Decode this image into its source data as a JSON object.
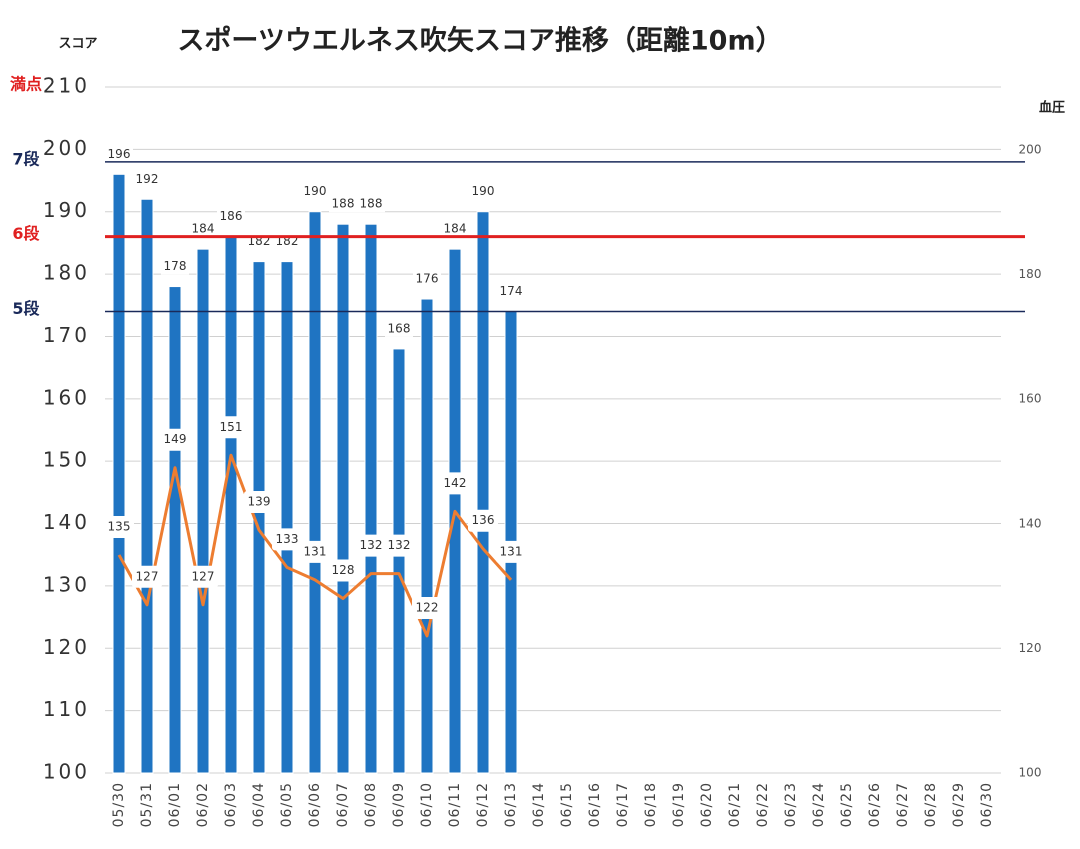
{
  "chart_data": {
    "type": "bar_line",
    "title": "スポーツウエルネス吹矢スコア推移（距離10m）",
    "y_label": "スコア",
    "y2_label": "血圧",
    "categories": [
      "05/30",
      "05/31",
      "06/01",
      "06/02",
      "06/03",
      "06/04",
      "06/05",
      "06/06",
      "06/07",
      "06/08",
      "06/09",
      "06/10",
      "06/11",
      "06/12",
      "06/13",
      "06/14",
      "06/15",
      "06/16",
      "06/17",
      "06/18",
      "06/19",
      "06/20",
      "06/21",
      "06/22",
      "06/23",
      "06/24",
      "06/25",
      "06/26",
      "06/27",
      "06/28",
      "06/29",
      "06/30"
    ],
    "series": [
      {
        "type": "bar",
        "color": "#1f74c2",
        "values": [
          196,
          192,
          178,
          184,
          186,
          182,
          182,
          190,
          188,
          188,
          168,
          176,
          184,
          190,
          174,
          null,
          null,
          null,
          null,
          null,
          null,
          null,
          null,
          null,
          null,
          null,
          null,
          null,
          null,
          null,
          null,
          null
        ]
      },
      {
        "type": "line",
        "axis": "y2",
        "color": "#ed7d31",
        "values": [
          135,
          127,
          149,
          127,
          151,
          139,
          133,
          131,
          128,
          132,
          132,
          122,
          142,
          136,
          131,
          null,
          null,
          null,
          null,
          null,
          null,
          null,
          null,
          null,
          null,
          null,
          null,
          null,
          null,
          null,
          null,
          null
        ]
      }
    ],
    "ylim": [
      100,
      210
    ],
    "yticks": [
      100,
      110,
      120,
      130,
      140,
      150,
      160,
      170,
      180,
      190,
      200,
      210
    ],
    "y2lim": [
      100,
      200
    ],
    "y2ticks": [
      100,
      120,
      140,
      160,
      180,
      200
    ],
    "grid": true,
    "reference_lines": [
      {
        "label": "満点",
        "value": 210,
        "color": "#e02020",
        "line": false
      },
      {
        "label": "7段",
        "value": 198,
        "color": "#1a2a5a",
        "line": true
      },
      {
        "label": "6段",
        "value": 186,
        "color": "#e02020",
        "line": true
      },
      {
        "label": "5段",
        "value": 174,
        "color": "#1a2a5a",
        "line": true
      }
    ]
  }
}
